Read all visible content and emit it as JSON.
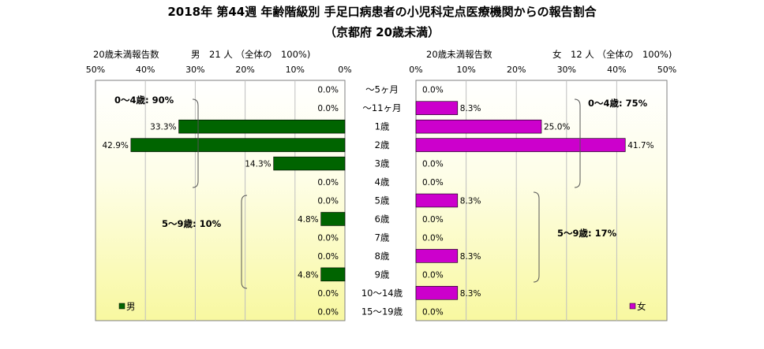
{
  "chart_data": {
    "type": "bar",
    "title": "2018年 第44週 年齢階級別 手足口病患者の小児科定点医療機関からの報告割合",
    "subtitle": "（京都府 20歳未満）",
    "categories": [
      "～5ヶ月",
      "～11ヶ月",
      "1歳",
      "2歳",
      "3歳",
      "4歳",
      "5歳",
      "6歳",
      "7歳",
      "8歳",
      "9歳",
      "10～14歳",
      "15～19歳"
    ],
    "series": [
      {
        "name": "男",
        "color": "#006400",
        "values": [
          0.0,
          0.0,
          33.3,
          42.9,
          14.3,
          0.0,
          0.0,
          4.8,
          0.0,
          0.0,
          4.8,
          0.0,
          0.0
        ],
        "labels": [
          "0.0%",
          "0.0%",
          "33.3%",
          "42.9%",
          "14.3%",
          "0.0%",
          "0.0%",
          "4.8%",
          "0.0%",
          "0.0%",
          "4.8%",
          "0.0%",
          "0.0%"
        ]
      },
      {
        "name": "女",
        "color": "#cc00cc",
        "values": [
          0.0,
          8.3,
          25.0,
          41.7,
          0.0,
          0.0,
          8.3,
          0.0,
          0.0,
          8.3,
          0.0,
          8.3,
          0.0
        ],
        "labels": [
          "0.0%",
          "8.3%",
          "25.0%",
          "41.7%",
          "0.0%",
          "0.0%",
          "8.3%",
          "0.0%",
          "0.0%",
          "8.3%",
          "0.0%",
          "8.3%",
          "0.0%"
        ]
      }
    ],
    "panels": {
      "left": {
        "header_left": "20歳未満報告数",
        "header_right": "男　21 人 （全体の　100%)",
        "ticks": [
          "50%",
          "40%",
          "30%",
          "20%",
          "10%",
          "0%"
        ],
        "xlim": [
          0,
          50
        ],
        "groups": [
          "0～4歳: 90%",
          "5～9歳: 10%"
        ],
        "legend": "男"
      },
      "right": {
        "header_left": "20歳未満報告数",
        "header_right": "女　12 人 （全体の　100%)",
        "ticks": [
          "0%",
          "10%",
          "20%",
          "30%",
          "40%",
          "50%"
        ],
        "xlim": [
          0,
          50
        ],
        "groups": [
          "0～4歳: 75%",
          "5～9歳: 17%"
        ],
        "legend": "女"
      }
    }
  }
}
